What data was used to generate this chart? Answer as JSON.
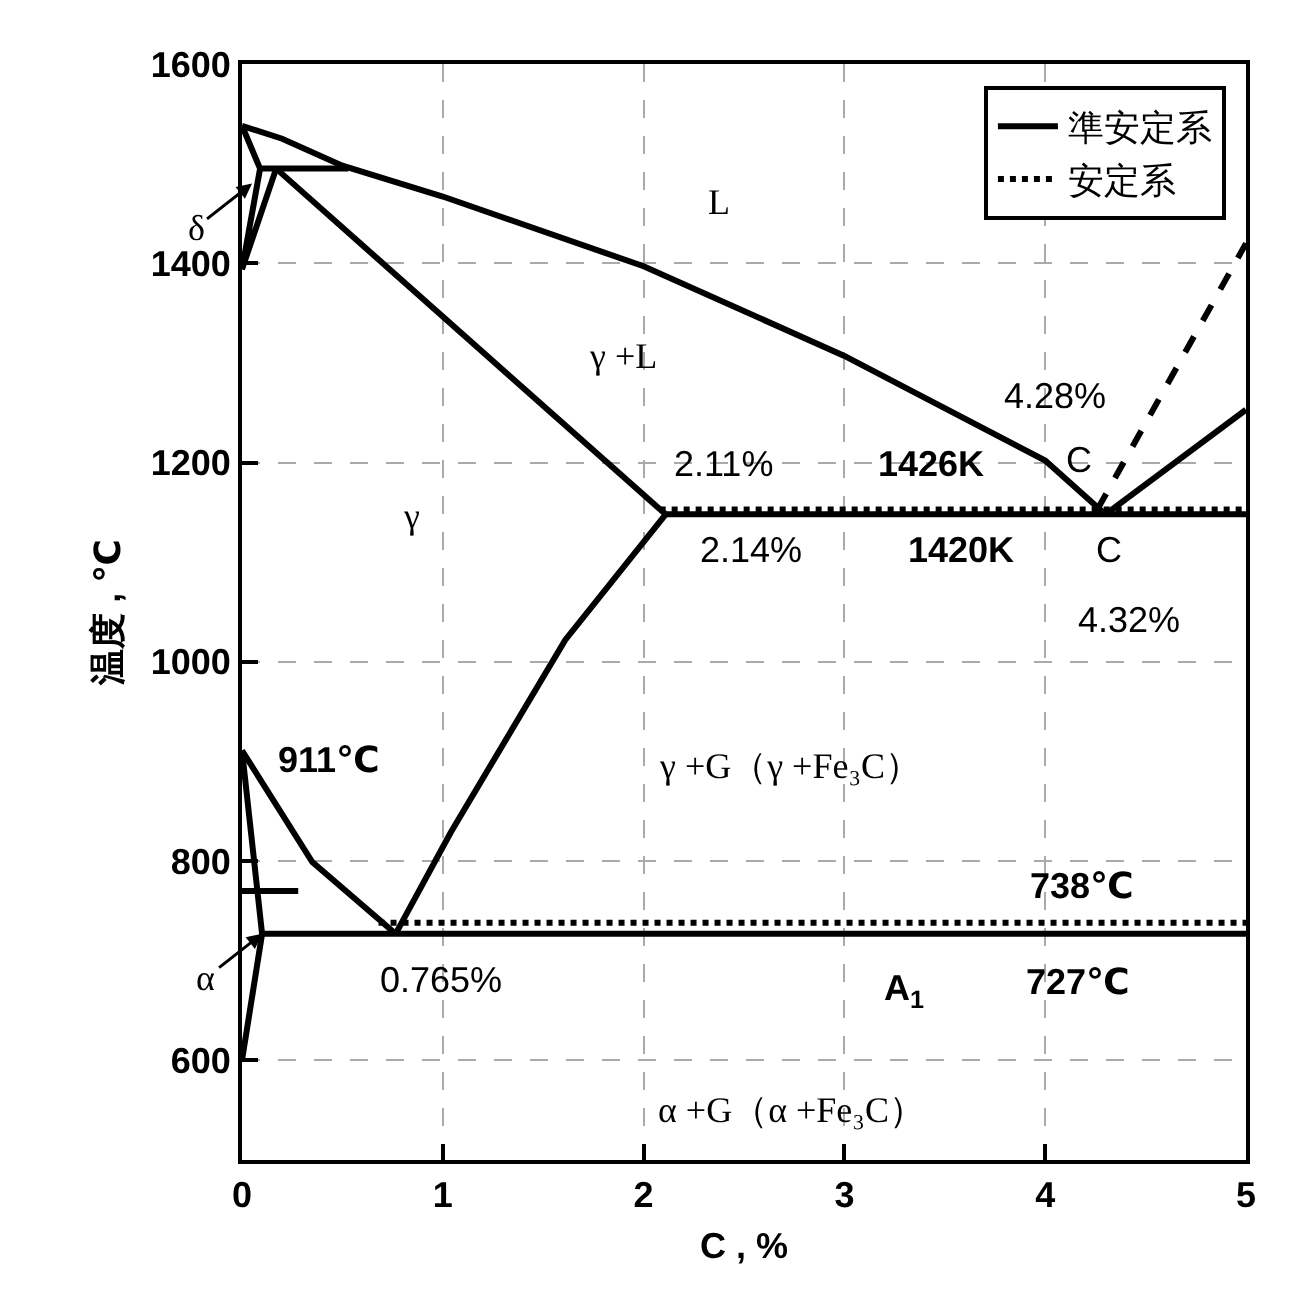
{
  "chart_data": {
    "type": "line",
    "xlabel": "C , %",
    "ylabel": "温度 , ℃",
    "xlim": [
      0,
      5
    ],
    "xticks": [
      0,
      1,
      2,
      3,
      4,
      5
    ],
    "ylim": [
      500,
      1600
    ],
    "yticks": [
      600,
      800,
      1000,
      1200,
      1400,
      1600
    ],
    "grid": true,
    "legend": "top right",
    "marker": "none",
    "series": [
      {
        "name": "準安定系",
        "color": "#000000",
        "line_style": "solid",
        "x": [
          0,
          0.2,
          0.5,
          1,
          2,
          3,
          4,
          4.3
        ],
        "values": [
          1538,
          1525,
          1498,
          1467,
          1397,
          1307,
          1202,
          1148
        ]
      },
      {
        "color": "#000000",
        "line_style": "solid",
        "x": [
          0.17,
          2.11
        ],
        "values": [
          1495,
          1148
        ]
      },
      {
        "color": "#000000",
        "line_style": "solid",
        "x": [
          2.11,
          5
        ],
        "values": [
          1148,
          1148
        ]
      },
      {
        "color": "#000000",
        "line_style": "solid",
        "x": [
          4.3,
          5
        ],
        "values": [
          1148,
          1253
        ]
      },
      {
        "color": "#000000",
        "line_style": "solid",
        "x": [
          0.765,
          1.04,
          1.61,
          2.11
        ],
        "values": [
          727,
          829,
          1022,
          1148
        ]
      },
      {
        "color": "#000000",
        "line_style": "solid",
        "x": [
          0,
          0.35,
          0.765
        ],
        "values": [
          911,
          799,
          727
        ]
      },
      {
        "color": "#000000",
        "line_style": "solid",
        "x": [
          0.1,
          5
        ],
        "values": [
          727,
          727
        ]
      },
      {
        "color": "#000000",
        "line_style": "solid",
        "x": [
          0,
          0.09,
          0.53
        ],
        "values": [
          1538,
          1495,
          1495
        ]
      },
      {
        "color": "#000000",
        "line_style": "solid",
        "x": [
          0.09,
          0,
          0.17
        ],
        "values": [
          1495,
          1394,
          1495
        ]
      },
      {
        "color": "#000000",
        "line_style": "solid",
        "x": [
          0,
          0.1,
          0
        ],
        "values": [
          911,
          727,
          600
        ]
      },
      {
        "color": "#000000",
        "line_style": "solid",
        "x": [
          0,
          0.28
        ],
        "values": [
          770,
          770
        ]
      },
      {
        "name": "安定系",
        "color": "#000000",
        "line_style": "dotted",
        "x": [
          2.08,
          5
        ],
        "values": [
          1153,
          1153
        ]
      },
      {
        "color": "#000000",
        "line_style": "dotted",
        "x": [
          0.68,
          5
        ],
        "values": [
          738,
          738
        ]
      },
      {
        "color": "#000000",
        "line_style": "dashed",
        "x": [
          4.26,
          5
        ],
        "values": [
          1153,
          1420
        ]
      }
    ],
    "annotations": [
      {
        "text": "δ",
        "x": 0.05,
        "y": 1480
      },
      {
        "text": "α",
        "x": 0.1,
        "y": 727
      },
      "L",
      "γ +L",
      "γ",
      "2.11%",
      "1426K",
      "2.14%",
      "1420K",
      "4.28%",
      "C",
      "C",
      "4.32%",
      "911℃",
      "γ +G（γ +Fe₃C）",
      "738℃",
      "0.765%",
      "A$_{1}$",
      "727℃",
      "α +G（α +Fe₃C）"
    ]
  }
}
